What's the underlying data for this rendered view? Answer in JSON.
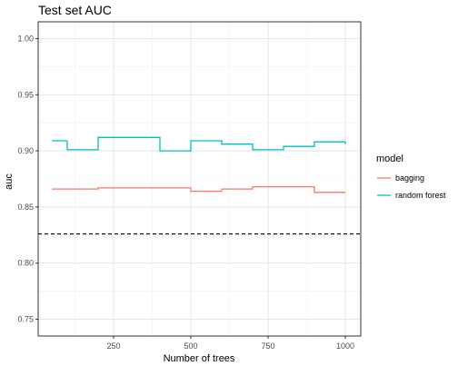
{
  "chart_data": {
    "type": "line",
    "title": "Test set AUC",
    "xlabel": "Number of trees",
    "ylabel": "auc",
    "xlim": [
      50,
      1000
    ],
    "ylim": [
      0.735,
      1.015
    ],
    "x_ticks": [
      250,
      500,
      750,
      1000
    ],
    "y_ticks": [
      0.75,
      0.8,
      0.85,
      0.9,
      0.95,
      1.0
    ],
    "y_tick_labels": [
      "0.75",
      "0.80",
      "0.85",
      "0.90",
      "0.95",
      "1.00"
    ],
    "grid": true,
    "legend": {
      "title": "model",
      "position": "right"
    },
    "reference_line": {
      "y": 0.826,
      "style": "dashed",
      "color": "#000000"
    },
    "series": [
      {
        "name": "bagging",
        "color": "#F8766D",
        "step": true,
        "x": [
          50,
          100,
          200,
          300,
          400,
          500,
          600,
          700,
          800,
          900,
          1000
        ],
        "values": [
          0.866,
          0.866,
          0.867,
          0.867,
          0.867,
          0.864,
          0.866,
          0.868,
          0.868,
          0.863,
          0.863
        ]
      },
      {
        "name": "random forest",
        "color": "#00BFC4",
        "step": true,
        "x": [
          50,
          100,
          200,
          300,
          400,
          500,
          600,
          700,
          800,
          900,
          1000
        ],
        "values": [
          0.909,
          0.901,
          0.912,
          0.912,
          0.9,
          0.909,
          0.906,
          0.901,
          0.904,
          0.908,
          0.906
        ]
      }
    ]
  }
}
